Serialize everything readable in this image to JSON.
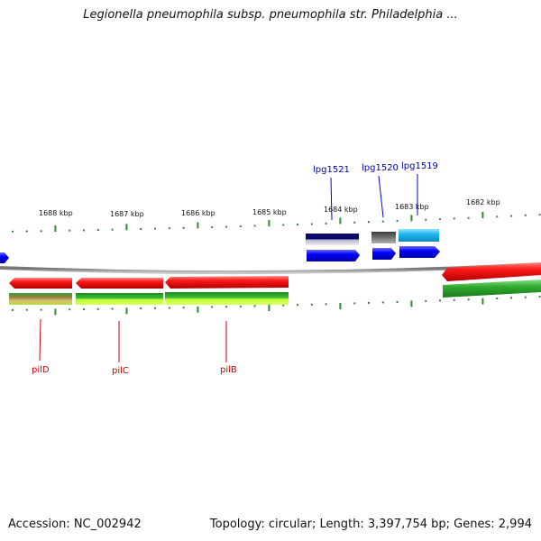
{
  "header": {
    "title": "Legionella pneumophila subsp. pneumophila str. Philadelphia ..."
  },
  "footer": {
    "accession": "Accession: NC_002942",
    "summary": "Topology: circular; Length: 3,397,754 bp; Genes: 2,994"
  },
  "scale": {
    "labels": [
      "1688 kbp",
      "1687 kbp",
      "1686 kbp",
      "1685 kbp",
      "1684 kbp",
      "1683 kbp",
      "1682 kbp"
    ]
  },
  "genes": {
    "upper": [
      "lpg1521",
      "lpg1520",
      "lpg1519"
    ],
    "lower": [
      "pilD",
      "pilC",
      "pilB"
    ]
  },
  "colors": {
    "tick": "#2e8b2e",
    "backbone": "#808080",
    "red": "#ff0000",
    "green": "#2faa2f",
    "lime": "#bfff2f",
    "blue": "#0000ff",
    "navy": "#0a0a6e",
    "cyan": "#1fb8ee",
    "gray": "#555555"
  }
}
